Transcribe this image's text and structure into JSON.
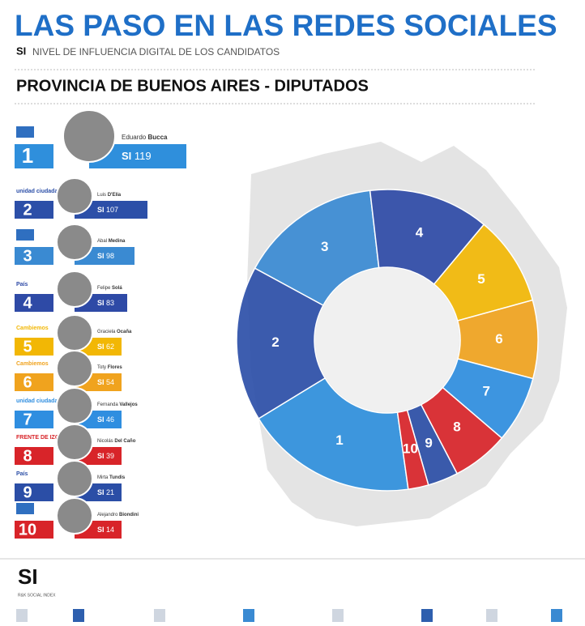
{
  "header": {
    "title": "LAS PASO EN LAS REDES SOCIALES",
    "logo": "SI",
    "subtitle": "NIVEL DE INFLUENCIA DIGITAL DE LOS CANDIDATOS",
    "section": "PROVINCIA DE BUENOS AIRES - DIPUTADOS"
  },
  "chart_data": {
    "type": "donut",
    "categories": [
      "1",
      "2",
      "3",
      "4",
      "5",
      "6",
      "7",
      "8",
      "9",
      "10"
    ],
    "values": [
      119,
      107,
      98,
      83,
      62,
      54,
      46,
      39,
      21,
      14
    ],
    "colors": [
      "#2f8fdc",
      "#2c4fa8",
      "#3a8ad2",
      "#2e4aa6",
      "#f2b705",
      "#f0a31e",
      "#2f8ee0",
      "#d82429",
      "#2b4ea6",
      "#d82429"
    ],
    "value_prefix": "SI",
    "candidates": [
      {
        "first": "Eduardo",
        "last": "Bucca",
        "party": null
      },
      {
        "first": "Luis",
        "last": "D'Elía",
        "party": "unidad ciudadana"
      },
      {
        "first": "Abal",
        "last": "Medina",
        "party": null
      },
      {
        "first": "Felipe",
        "last": "Solá",
        "party": "País"
      },
      {
        "first": "Graciela",
        "last": "Ocaña",
        "party": "Cambiemos"
      },
      {
        "first": "Toty",
        "last": "Flores",
        "party": "Cambiemos"
      },
      {
        "first": "Fernanda",
        "last": "Vallejos",
        "party": "unidad ciudadana"
      },
      {
        "first": "Nicolás",
        "last": "Del Caño",
        "party": "FRENTE DE IZQUIERDA"
      },
      {
        "first": "Mirta",
        "last": "Tundis",
        "party": "País"
      },
      {
        "first": "Alejandro",
        "last": "Biondini",
        "party": null
      }
    ]
  },
  "footer": {
    "logo": "SI",
    "brand": "R&K SOCIAL INDEX"
  }
}
